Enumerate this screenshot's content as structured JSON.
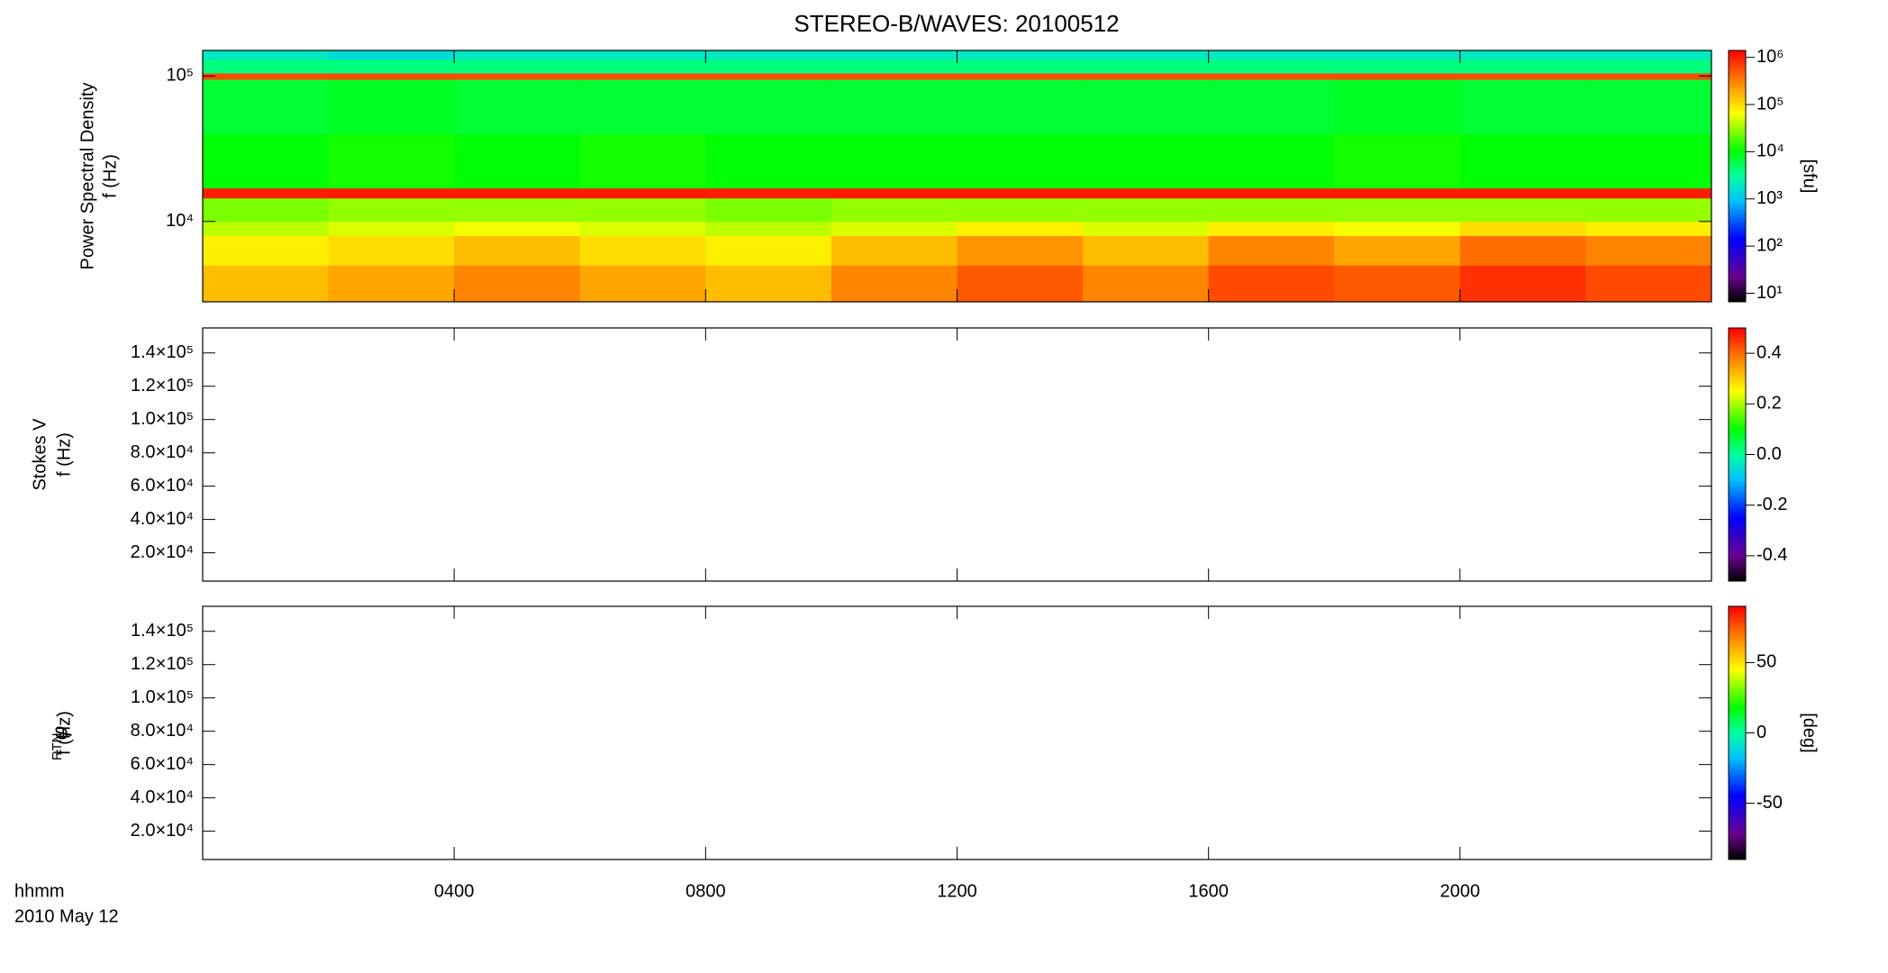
{
  "chart_data": [
    {
      "type": "heatmap",
      "title": "STEREO-B/WAVES: 20100512",
      "ylabel": [
        "Power Spectral Density",
        "f (Hz)"
      ],
      "xlim": [
        0,
        24
      ],
      "xticks": [
        4,
        8,
        12,
        16,
        20
      ],
      "ylog": true,
      "ylim": [
        2800,
        150000
      ],
      "yticks": [
        {
          "value": 10000,
          "label": "10⁴"
        },
        {
          "value": 100000,
          "label": "10⁵"
        }
      ],
      "x_edges": [
        0,
        2,
        4,
        6,
        8,
        10,
        12,
        14,
        16,
        18,
        20,
        22,
        24
      ],
      "y_edges": [
        2800,
        5000,
        8000,
        10000,
        14500,
        17000,
        40000,
        95000,
        105000,
        130000,
        150000
      ],
      "z": [
        [
          150000,
          200000,
          300000,
          200000,
          150000,
          300000,
          500000,
          300000,
          600000,
          500000,
          800000,
          600000
        ],
        [
          80000,
          100000,
          150000,
          100000,
          80000,
          150000,
          250000,
          150000,
          300000,
          200000,
          400000,
          300000
        ],
        [
          40000,
          50000,
          60000,
          50000,
          40000,
          50000,
          80000,
          50000,
          80000,
          60000,
          100000,
          80000
        ],
        [
          25000,
          30000,
          30000,
          30000,
          25000,
          30000,
          30000,
          30000,
          30000,
          30000,
          30000,
          30000
        ],
        [
          1000000,
          1000000,
          1000000,
          1000000,
          1000000,
          1000000,
          1000000,
          1000000,
          1000000,
          1000000,
          1000000,
          1000000
        ],
        [
          10000,
          12000,
          10000,
          12000,
          10000,
          10000,
          10000,
          10000,
          10000,
          12000,
          10000,
          10000
        ],
        [
          7000,
          8000,
          7000,
          7000,
          7000,
          7000,
          7000,
          7000,
          7000,
          8000,
          7000,
          7000
        ],
        [
          600000,
          600000,
          600000,
          600000,
          600000,
          600000,
          600000,
          600000,
          600000,
          600000,
          600000,
          600000
        ],
        [
          4000,
          4000,
          4000,
          4000,
          4000,
          4000,
          4000,
          4000,
          4000,
          4000,
          4000,
          4000
        ],
        [
          2000,
          1500,
          2000,
          2000,
          2000,
          2000,
          2000,
          2000,
          2000,
          2000,
          2000,
          2000
        ]
      ],
      "colorbar": {
        "log": true,
        "lim": [
          6.6,
          1400000
        ],
        "label": "[sfu]",
        "ticks": [
          {
            "value": 10,
            "label": "10¹"
          },
          {
            "value": 100,
            "label": "10²"
          },
          {
            "value": 1000,
            "label": "10³"
          },
          {
            "value": 10000,
            "label": "10⁴"
          },
          {
            "value": 100000,
            "label": "10⁵"
          },
          {
            "value": 1000000,
            "label": "10⁶"
          }
        ]
      }
    },
    {
      "type": "heatmap",
      "ylabel": [
        "Stokes V",
        "f (Hz)"
      ],
      "xlim": [
        0,
        24
      ],
      "xticks": [
        4,
        8,
        12,
        16,
        20
      ],
      "ylim": [
        3000,
        155000
      ],
      "yticks": [
        {
          "value": 20000,
          "label": "2.0×10⁴"
        },
        {
          "value": 40000,
          "label": "4.0×10⁴"
        },
        {
          "value": 60000,
          "label": "6.0×10⁴"
        },
        {
          "value": 80000,
          "label": "8.0×10⁴"
        },
        {
          "value": 100000,
          "label": "1.0×10⁵"
        },
        {
          "value": 120000,
          "label": "1.2×10⁵"
        },
        {
          "value": 140000,
          "label": "1.4×10⁵"
        }
      ],
      "colorbar": {
        "log": false,
        "lim": [
          -0.5,
          0.5
        ],
        "ticks": [
          -0.4,
          -0.2,
          {
            "value": 0,
            "label": "0.0"
          },
          0.2,
          0.4
        ]
      }
    },
    {
      "type": "heatmap",
      "ylabel": [
        "φ",
        "f (Hz)"
      ],
      "ylabel_subscript": "RTN",
      "xlabel": [
        "hhmm",
        "2010 May 12"
      ],
      "xlim": [
        0,
        24
      ],
      "xticks": [
        {
          "value": 4,
          "label": "0400"
        },
        {
          "value": 8,
          "label": "0800"
        },
        {
          "value": 12,
          "label": "1200"
        },
        {
          "value": 16,
          "label": "1600"
        },
        {
          "value": 20,
          "label": "2000"
        }
      ],
      "ylim": [
        3000,
        155000
      ],
      "yticks": [
        {
          "value": 20000,
          "label": "2.0×10⁴"
        },
        {
          "value": 40000,
          "label": "4.0×10⁴"
        },
        {
          "value": 60000,
          "label": "6.0×10⁴"
        },
        {
          "value": 80000,
          "label": "8.0×10⁴"
        },
        {
          "value": 100000,
          "label": "1.0×10⁵"
        },
        {
          "value": 120000,
          "label": "1.2×10⁵"
        },
        {
          "value": 140000,
          "label": "1.4×10⁵"
        }
      ],
      "colorbar": {
        "log": false,
        "lim": [
          -90,
          90
        ],
        "label": "[deg]",
        "ticks": [
          -50,
          0,
          50
        ]
      }
    }
  ]
}
